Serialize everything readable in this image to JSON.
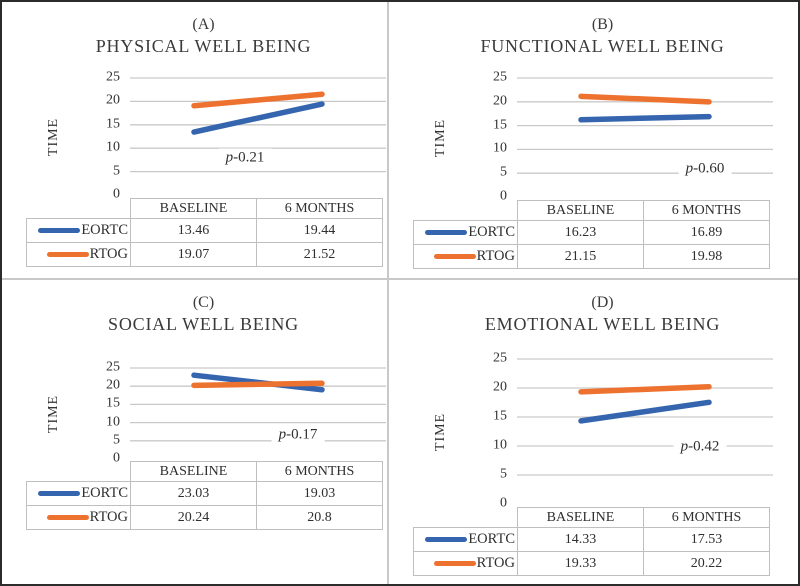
{
  "figure": {
    "y_axis_title": "TIME",
    "category_header": [
      "BASELINE",
      "6 MONTHS"
    ],
    "colors": {
      "eortc_blue": "#3565AE",
      "rtog_orange": "#ED7230",
      "gridline": "#C9C9C9",
      "table_border": "#BFBFBF",
      "outer_border": "#2B2B2B",
      "divider": "#C8C8C8"
    }
  },
  "chart_data": [
    {
      "type": "line",
      "panel_label": "(A)",
      "title": "PHYSICAL WELL BEING",
      "ylabel": "TIME",
      "ylim": [
        0,
        25
      ],
      "yticks": [
        25,
        20,
        15,
        10,
        5,
        0
      ],
      "grid": true,
      "legend_position": "table-left",
      "categories": [
        "BASELINE",
        "6 MONTHS"
      ],
      "series": [
        {
          "name": "EORTC",
          "color": "#3565AE",
          "values": [
            13.46,
            19.44
          ],
          "labels": [
            "13.46",
            "19.44"
          ]
        },
        {
          "name": "RTOG",
          "color": "#ED7230",
          "values": [
            19.07,
            21.52
          ],
          "labels": [
            "19.07",
            "21.52"
          ]
        }
      ],
      "p_value_label": {
        "symbol": "p",
        "text": "-0.21"
      }
    },
    {
      "type": "line",
      "panel_label": "(B)",
      "title": "FUNCTIONAL WELL BEING",
      "ylabel": "TIME",
      "ylim": [
        0,
        25
      ],
      "yticks": [
        25,
        20,
        15,
        10,
        5,
        0
      ],
      "grid": true,
      "legend_position": "table-left",
      "categories": [
        "BASELINE",
        "6 MONTHS"
      ],
      "series": [
        {
          "name": "EORTC",
          "color": "#3565AE",
          "values": [
            16.23,
            16.89
          ],
          "labels": [
            "16.23",
            "16.89"
          ]
        },
        {
          "name": "RTOG",
          "color": "#ED7230",
          "values": [
            21.15,
            19.98
          ],
          "labels": [
            "21.15",
            "19.98"
          ]
        }
      ],
      "p_value_label": {
        "symbol": "p",
        "text": "-0.60"
      }
    },
    {
      "type": "line",
      "panel_label": "(C)",
      "title": "SOCIAL WELL BEING",
      "ylabel": "TIME",
      "ylim": [
        0,
        25
      ],
      "yticks": [
        25,
        20,
        15,
        10,
        5,
        0
      ],
      "grid": true,
      "legend_position": "table-left",
      "categories": [
        "BASELINE",
        "6 MONTHS"
      ],
      "series": [
        {
          "name": "EORTC",
          "color": "#3565AE",
          "values": [
            23.03,
            19.03
          ],
          "labels": [
            "23.03",
            "19.03"
          ]
        },
        {
          "name": "RTOG",
          "color": "#ED7230",
          "values": [
            20.24,
            20.8
          ],
          "labels": [
            "20.24",
            "20.8"
          ]
        }
      ],
      "p_value_label": {
        "symbol": "p",
        "text": "-0.17"
      }
    },
    {
      "type": "line",
      "panel_label": "(D)",
      "title": "EMOTIONAL WELL BEING",
      "ylabel": "TIME",
      "ylim": [
        0,
        25
      ],
      "yticks": [
        25,
        20,
        15,
        10,
        5,
        0
      ],
      "grid": true,
      "legend_position": "table-left",
      "categories": [
        "BASELINE",
        "6 MONTHS"
      ],
      "series": [
        {
          "name": "EORTC",
          "color": "#3565AE",
          "values": [
            14.33,
            17.53
          ],
          "labels": [
            "14.33",
            "17.53"
          ]
        },
        {
          "name": "RTOG",
          "color": "#ED7230",
          "values": [
            19.33,
            20.22
          ],
          "labels": [
            "19.33",
            "20.22"
          ]
        }
      ],
      "p_value_label": {
        "symbol": "p",
        "text": "-0.42"
      }
    }
  ]
}
